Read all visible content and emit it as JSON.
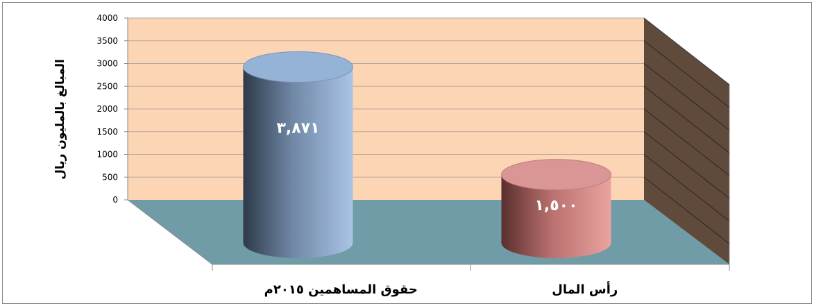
{
  "chart_data": {
    "type": "bar",
    "style": "3d-cylinder",
    "categories": [
      "حقوق المساهمين ٢٠١٥م",
      "رأس المال"
    ],
    "values": [
      3871,
      1500
    ],
    "data_labels": [
      "٣,٨٧١",
      "١,٥٠٠"
    ],
    "ylabel": "المبالغ بالمليون ريال",
    "xlabel": "",
    "ylim": [
      0,
      4000
    ],
    "y_ticks": [
      "0",
      "500",
      "1000",
      "1500",
      "2000",
      "2500",
      "3000",
      "3500",
      "4000"
    ],
    "grid": true,
    "legend": "none",
    "colors": {
      "back_wall": "#FCD5B5",
      "side_wall": "#5F4A3B",
      "floor": "#6F9CA6",
      "gridline": "#B9A89A",
      "bar_1": "#95B3D7",
      "bar_2": "#D99694"
    }
  }
}
